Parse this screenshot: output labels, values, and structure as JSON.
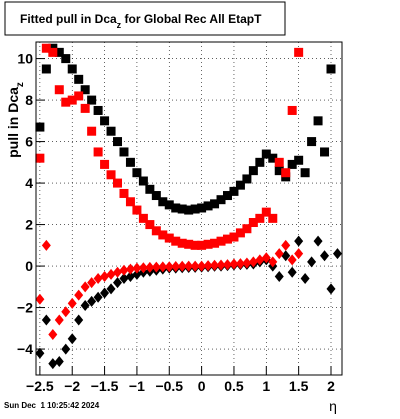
{
  "chart_data": {
    "type": "scatter",
    "title": {
      "text": "Fitted pull in Dca",
      "subscript": "z",
      "rest": " for Global Rec All EtapT"
    },
    "ylabel": {
      "text": "pull in Dca",
      "subscript": "z"
    },
    "xlabel": "η",
    "footer": "Sun Dec  1 10:25:42 2024",
    "xlim": [
      -2.56,
      2.17
    ],
    "ylim": [
      -5.25,
      10.8
    ],
    "grid": true,
    "xticks": [
      {
        "value": -2.5,
        "label": "−2.5"
      },
      {
        "value": -2,
        "label": "−2"
      },
      {
        "value": -1.5,
        "label": "−1.5"
      },
      {
        "value": -1,
        "label": "−1"
      },
      {
        "value": -0.5,
        "label": "−0.5"
      },
      0,
      0.5,
      1,
      1.5,
      2
    ],
    "yticks": [
      {
        "value": -4,
        "label": "−4"
      },
      {
        "value": -2,
        "label": "−2"
      },
      0,
      2,
      4,
      6,
      8,
      10
    ],
    "series": [
      {
        "color": "#000000",
        "marker": "square",
        "x": [
          -2.5,
          -2.4,
          -2.3,
          -2.2,
          -2.1,
          -2.0,
          -1.9,
          -1.8,
          -1.7,
          -1.6,
          -1.5,
          -1.4,
          -1.3,
          -1.2,
          -1.1,
          -1.0,
          -0.9,
          -0.8,
          -0.7,
          -0.6,
          -0.5,
          -0.4,
          -0.3,
          -0.2,
          -0.1,
          0.0,
          0.1,
          0.2,
          0.3,
          0.4,
          0.5,
          0.6,
          0.7,
          0.8,
          0.9,
          1.0,
          1.1,
          1.2,
          1.3,
          1.4,
          1.5,
          1.6,
          1.7,
          1.8,
          1.9,
          2.0
        ],
        "values": [
          6.7,
          9.5,
          10.5,
          10.3,
          10.0,
          9.5,
          9.0,
          8.5,
          8.0,
          7.5,
          7.0,
          6.5,
          6.0,
          5.5,
          5.0,
          4.5,
          4.1,
          3.7,
          3.4,
          3.1,
          2.95,
          2.8,
          2.75,
          2.7,
          2.75,
          2.8,
          2.9,
          3.0,
          3.2,
          3.4,
          3.6,
          3.9,
          4.2,
          4.6,
          5.0,
          5.4,
          5.2,
          4.6,
          4.3,
          4.9,
          5.1,
          4.5,
          6.0,
          7.0,
          5.5,
          9.5
        ]
      },
      {
        "color": "#ff0000",
        "marker": "square",
        "x": [
          -2.5,
          -2.4,
          -2.3,
          -2.2,
          -2.1,
          -2.0,
          -1.9,
          -1.8,
          -1.7,
          -1.6,
          -1.5,
          -1.4,
          -1.3,
          -1.2,
          -1.1,
          -1.0,
          -0.9,
          -0.8,
          -0.7,
          -0.6,
          -0.5,
          -0.4,
          -0.3,
          -0.2,
          -0.1,
          0.0,
          0.1,
          0.2,
          0.3,
          0.4,
          0.5,
          0.6,
          0.7,
          0.8,
          0.9,
          1.0,
          1.1,
          1.2,
          1.3,
          1.4,
          1.5
        ],
        "values": [
          5.2,
          10.5,
          10.3,
          8.5,
          7.9,
          8.0,
          8.2,
          7.6,
          6.5,
          5.5,
          4.9,
          4.4,
          4.0,
          3.5,
          3.1,
          2.7,
          2.3,
          2.0,
          1.7,
          1.5,
          1.35,
          1.2,
          1.1,
          1.05,
          1.0,
          1.0,
          1.05,
          1.1,
          1.2,
          1.3,
          1.4,
          1.6,
          1.8,
          2.1,
          2.3,
          2.6,
          2.3,
          5.0,
          4.5,
          7.5,
          10.3
        ]
      },
      {
        "color": "#000000",
        "marker": "diamond",
        "x": [
          -2.5,
          -2.4,
          -2.3,
          -2.2,
          -2.1,
          -2.0,
          -1.9,
          -1.8,
          -1.7,
          -1.6,
          -1.5,
          -1.4,
          -1.3,
          -1.2,
          -1.1,
          -1.0,
          -0.9,
          -0.8,
          -0.7,
          -0.6,
          -0.5,
          -0.4,
          -0.3,
          -0.2,
          -0.1,
          0.0,
          0.1,
          0.2,
          0.3,
          0.4,
          0.5,
          0.6,
          0.7,
          0.8,
          0.9,
          1.0,
          1.1,
          1.2,
          1.3,
          1.4,
          1.5,
          1.6,
          1.7,
          1.8,
          1.9,
          2.0,
          2.1
        ],
        "values": [
          -4.2,
          -2.6,
          -4.7,
          -4.6,
          -4.0,
          -3.5,
          -2.6,
          -1.9,
          -1.7,
          -1.5,
          -1.3,
          -1.1,
          -0.8,
          -0.6,
          -0.5,
          -0.4,
          -0.3,
          -0.25,
          -0.2,
          -0.15,
          -0.1,
          -0.1,
          -0.08,
          -0.07,
          -0.06,
          -0.05,
          -0.03,
          -0.01,
          0.0,
          0.02,
          0.05,
          0.07,
          0.08,
          0.1,
          0.2,
          0.3,
          0.0,
          -0.5,
          0.5,
          -0.3,
          1.2,
          -0.6,
          0.2,
          1.2,
          0.5,
          -1.1,
          0.6
        ]
      },
      {
        "color": "#ff0000",
        "marker": "diamond",
        "x": [
          -2.5,
          -2.4,
          -2.3,
          -2.2,
          -2.1,
          -2.0,
          -1.9,
          -1.8,
          -1.7,
          -1.6,
          -1.5,
          -1.4,
          -1.3,
          -1.2,
          -1.1,
          -1.0,
          -0.9,
          -0.8,
          -0.7,
          -0.6,
          -0.5,
          -0.4,
          -0.3,
          -0.2,
          -0.1,
          0.0,
          0.1,
          0.2,
          0.3,
          0.4,
          0.5,
          0.6,
          0.7,
          0.8,
          0.9,
          1.0,
          1.1,
          1.2,
          1.3,
          1.4,
          1.5
        ],
        "values": [
          -1.6,
          1.0,
          -3.3,
          -2.6,
          -2.2,
          -1.8,
          -1.4,
          -1.0,
          -0.8,
          -0.6,
          -0.5,
          -0.4,
          -0.3,
          -0.2,
          -0.15,
          -0.1,
          -0.08,
          -0.06,
          -0.05,
          -0.04,
          -0.03,
          -0.02,
          -0.01,
          0.0,
          0.0,
          0.0,
          0.02,
          0.04,
          0.05,
          0.07,
          0.1,
          0.12,
          0.15,
          0.2,
          0.3,
          0.4,
          0.2,
          0.6,
          1.0,
          0.3,
          0.6
        ]
      }
    ]
  }
}
